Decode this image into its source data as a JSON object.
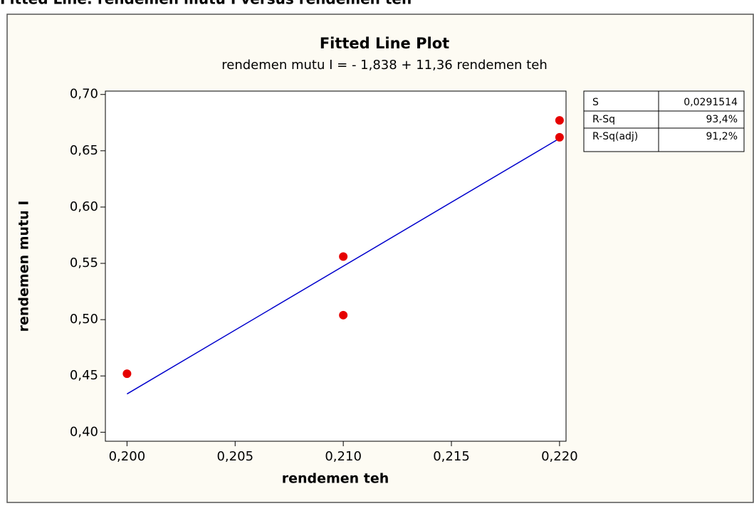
{
  "header": "Fitted Line: rendemen mutu I versus rendemen teh",
  "chart_data": {
    "type": "scatter",
    "title": "Fitted Line Plot",
    "subtitle": "rendemen mutu I =  - 1,838 + 11,36 rendemen teh",
    "x_label": "rendemen teh",
    "y_label": "rendemen mutu I",
    "xlim": [
      0.199,
      0.2203
    ],
    "ylim": [
      0.392,
      0.703
    ],
    "xticks": [
      {
        "value": 0.2,
        "label": "0,200"
      },
      {
        "value": 0.205,
        "label": "0,205"
      },
      {
        "value": 0.21,
        "label": "0,210"
      },
      {
        "value": 0.215,
        "label": "0,215"
      },
      {
        "value": 0.22,
        "label": "0,220"
      }
    ],
    "yticks": [
      {
        "value": 0.4,
        "label": "0,40"
      },
      {
        "value": 0.45,
        "label": "0,45"
      },
      {
        "value": 0.5,
        "label": "0,50"
      },
      {
        "value": 0.55,
        "label": "0,55"
      },
      {
        "value": 0.6,
        "label": "0,60"
      },
      {
        "value": 0.65,
        "label": "0,65"
      },
      {
        "value": 0.7,
        "label": "0,70"
      }
    ],
    "points": {
      "color": "#e60000",
      "x": [
        0.2,
        0.21,
        0.21,
        0.22,
        0.22
      ],
      "values": [
        0.452,
        0.556,
        0.504,
        0.677,
        0.662
      ]
    },
    "fit_line": {
      "color": "#0000cc",
      "x": [
        0.2,
        0.22
      ],
      "values": [
        0.434,
        0.661
      ]
    },
    "stats": [
      {
        "label": "S",
        "value": "0,0291514"
      },
      {
        "label": "R-Sq",
        "value": "93,4%"
      },
      {
        "label": "R-Sq(adj)",
        "value": "91,2%"
      }
    ]
  }
}
